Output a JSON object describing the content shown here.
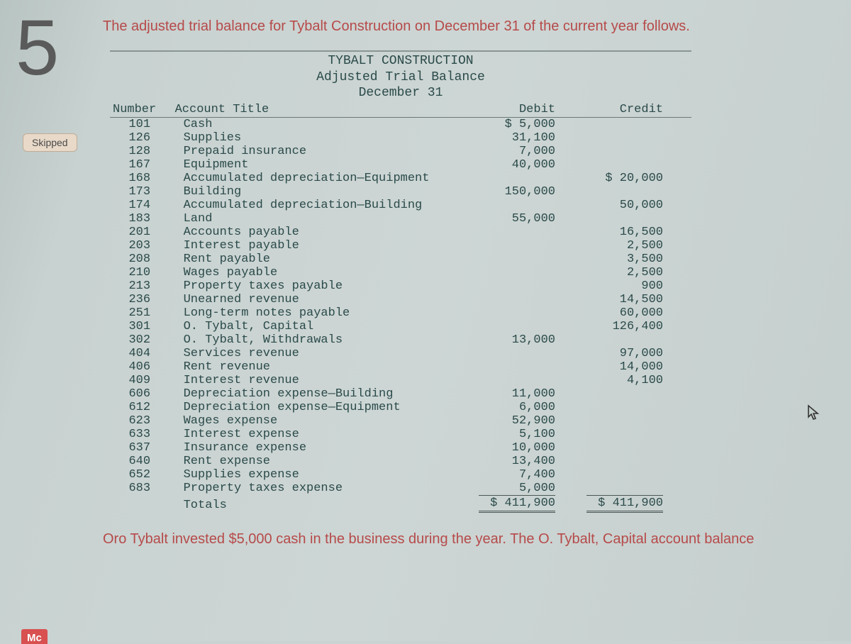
{
  "question_number": "5",
  "skipped_label": "Skipped",
  "mc_label": "Mc",
  "intro_text": "The adjusted trial balance for Tybalt Construction on December 31 of the current year follows.",
  "header": {
    "company": "TYBALT CONSTRUCTION",
    "report": "Adjusted Trial Balance",
    "date": "December 31"
  },
  "columns": {
    "number": "Number",
    "title": "Account Title",
    "debit": "Debit",
    "credit": "Credit"
  },
  "rows": [
    {
      "num": "101",
      "title": "Cash",
      "debit": "$ 5,000",
      "credit": ""
    },
    {
      "num": "126",
      "title": "Supplies",
      "debit": "31,100",
      "credit": ""
    },
    {
      "num": "128",
      "title": "Prepaid insurance",
      "debit": "7,000",
      "credit": ""
    },
    {
      "num": "167",
      "title": "Equipment",
      "debit": "40,000",
      "credit": ""
    },
    {
      "num": "168",
      "title": "Accumulated depreciation—Equipment",
      "debit": "",
      "credit": "$ 20,000"
    },
    {
      "num": "173",
      "title": "Building",
      "debit": "150,000",
      "credit": ""
    },
    {
      "num": "174",
      "title": "Accumulated depreciation—Building",
      "debit": "",
      "credit": "50,000"
    },
    {
      "num": "183",
      "title": "Land",
      "debit": "55,000",
      "credit": ""
    },
    {
      "num": "201",
      "title": "Accounts payable",
      "debit": "",
      "credit": "16,500"
    },
    {
      "num": "203",
      "title": "Interest payable",
      "debit": "",
      "credit": "2,500"
    },
    {
      "num": "208",
      "title": "Rent payable",
      "debit": "",
      "credit": "3,500"
    },
    {
      "num": "210",
      "title": "Wages payable",
      "debit": "",
      "credit": "2,500"
    },
    {
      "num": "213",
      "title": "Property taxes payable",
      "debit": "",
      "credit": "900"
    },
    {
      "num": "236",
      "title": "Unearned revenue",
      "debit": "",
      "credit": "14,500"
    },
    {
      "num": "251",
      "title": "Long-term notes payable",
      "debit": "",
      "credit": "60,000"
    },
    {
      "num": "301",
      "title": "O. Tybalt, Capital",
      "debit": "",
      "credit": "126,400"
    },
    {
      "num": "302",
      "title": "O. Tybalt, Withdrawals",
      "debit": "13,000",
      "credit": ""
    },
    {
      "num": "404",
      "title": "Services revenue",
      "debit": "",
      "credit": "97,000"
    },
    {
      "num": "406",
      "title": "Rent revenue",
      "debit": "",
      "credit": "14,000"
    },
    {
      "num": "409",
      "title": "Interest revenue",
      "debit": "",
      "credit": "4,100"
    },
    {
      "num": "606",
      "title": "Depreciation expense—Building",
      "debit": "11,000",
      "credit": ""
    },
    {
      "num": "612",
      "title": "Depreciation expense—Equipment",
      "debit": "6,000",
      "credit": ""
    },
    {
      "num": "623",
      "title": "Wages expense",
      "debit": "52,900",
      "credit": ""
    },
    {
      "num": "633",
      "title": "Interest expense",
      "debit": "5,100",
      "credit": ""
    },
    {
      "num": "637",
      "title": "Insurance expense",
      "debit": "10,000",
      "credit": ""
    },
    {
      "num": "640",
      "title": "Rent expense",
      "debit": "13,400",
      "credit": ""
    },
    {
      "num": "652",
      "title": "Supplies expense",
      "debit": "7,400",
      "credit": ""
    },
    {
      "num": "683",
      "title": "Property taxes expense",
      "debit": "5,000",
      "credit": ""
    }
  ],
  "totals": {
    "label": "Totals",
    "debit": "$ 411,900",
    "credit": "$ 411,900"
  },
  "footer_note": "Oro Tybalt invested $5,000 cash in the business during the year. The O. Tybalt, Capital account balance"
}
